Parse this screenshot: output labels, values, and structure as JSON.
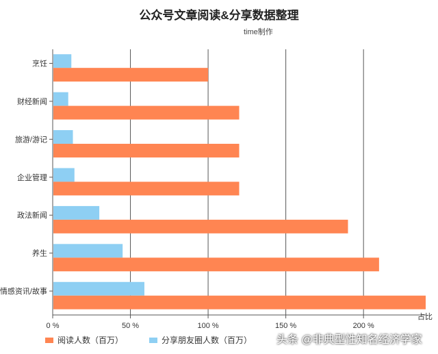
{
  "chart_data": {
    "type": "bar",
    "orientation": "horizontal",
    "title": "公众号文章阅读&分享数据整理",
    "subtitle": "time制作",
    "categories": [
      "烹饪",
      "财经新闻",
      "旅游/游记",
      "企业管理",
      "政法新闻",
      "养生",
      "情感资讯/故事"
    ],
    "series": [
      {
        "name": "分享朋友圈人数（百万）",
        "color": "#8ecff3",
        "values": [
          12,
          10,
          13,
          14,
          30,
          45,
          59
        ]
      },
      {
        "name": "阅读人数（百万）",
        "color": "#ff8552",
        "values": [
          100,
          120,
          120,
          120,
          190,
          210,
          240
        ]
      }
    ],
    "xlim": [
      0,
      240
    ],
    "xticks": [
      "0 %",
      "50 %",
      "100 %",
      "150 %",
      "200 %"
    ],
    "xtick_values": [
      0,
      50,
      100,
      150,
      200
    ],
    "xlabel": "占比",
    "gridlines": true
  },
  "legend": [
    {
      "label": "阅读人数（百万）",
      "color": "#ff8552"
    },
    {
      "label": "分享朋友圈人数（百万）",
      "color": "#8ecff3"
    }
  ],
  "watermark": "头条 @非典型性知名经济学家"
}
